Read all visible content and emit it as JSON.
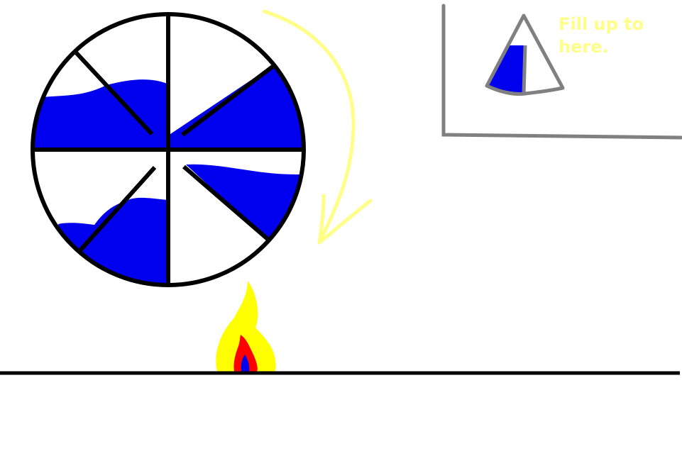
{
  "annotation": {
    "line1": "Fill up to",
    "line2": "here."
  },
  "colors": {
    "water": "#0000ee",
    "outline": "#000000",
    "arrow": "#ffff88",
    "annotation_text": "#ffff88",
    "inset_frame": "#808080",
    "flame_outer": "#ffff00",
    "flame_inner": "#ff0000",
    "flame_core": "#0000ee",
    "background": "#ffffff"
  },
  "icons": {
    "wheel": "water-wheel-icon",
    "arrow": "rotation-arrow-icon",
    "flame": "flame-icon",
    "segment": "bucket-segment-icon"
  }
}
